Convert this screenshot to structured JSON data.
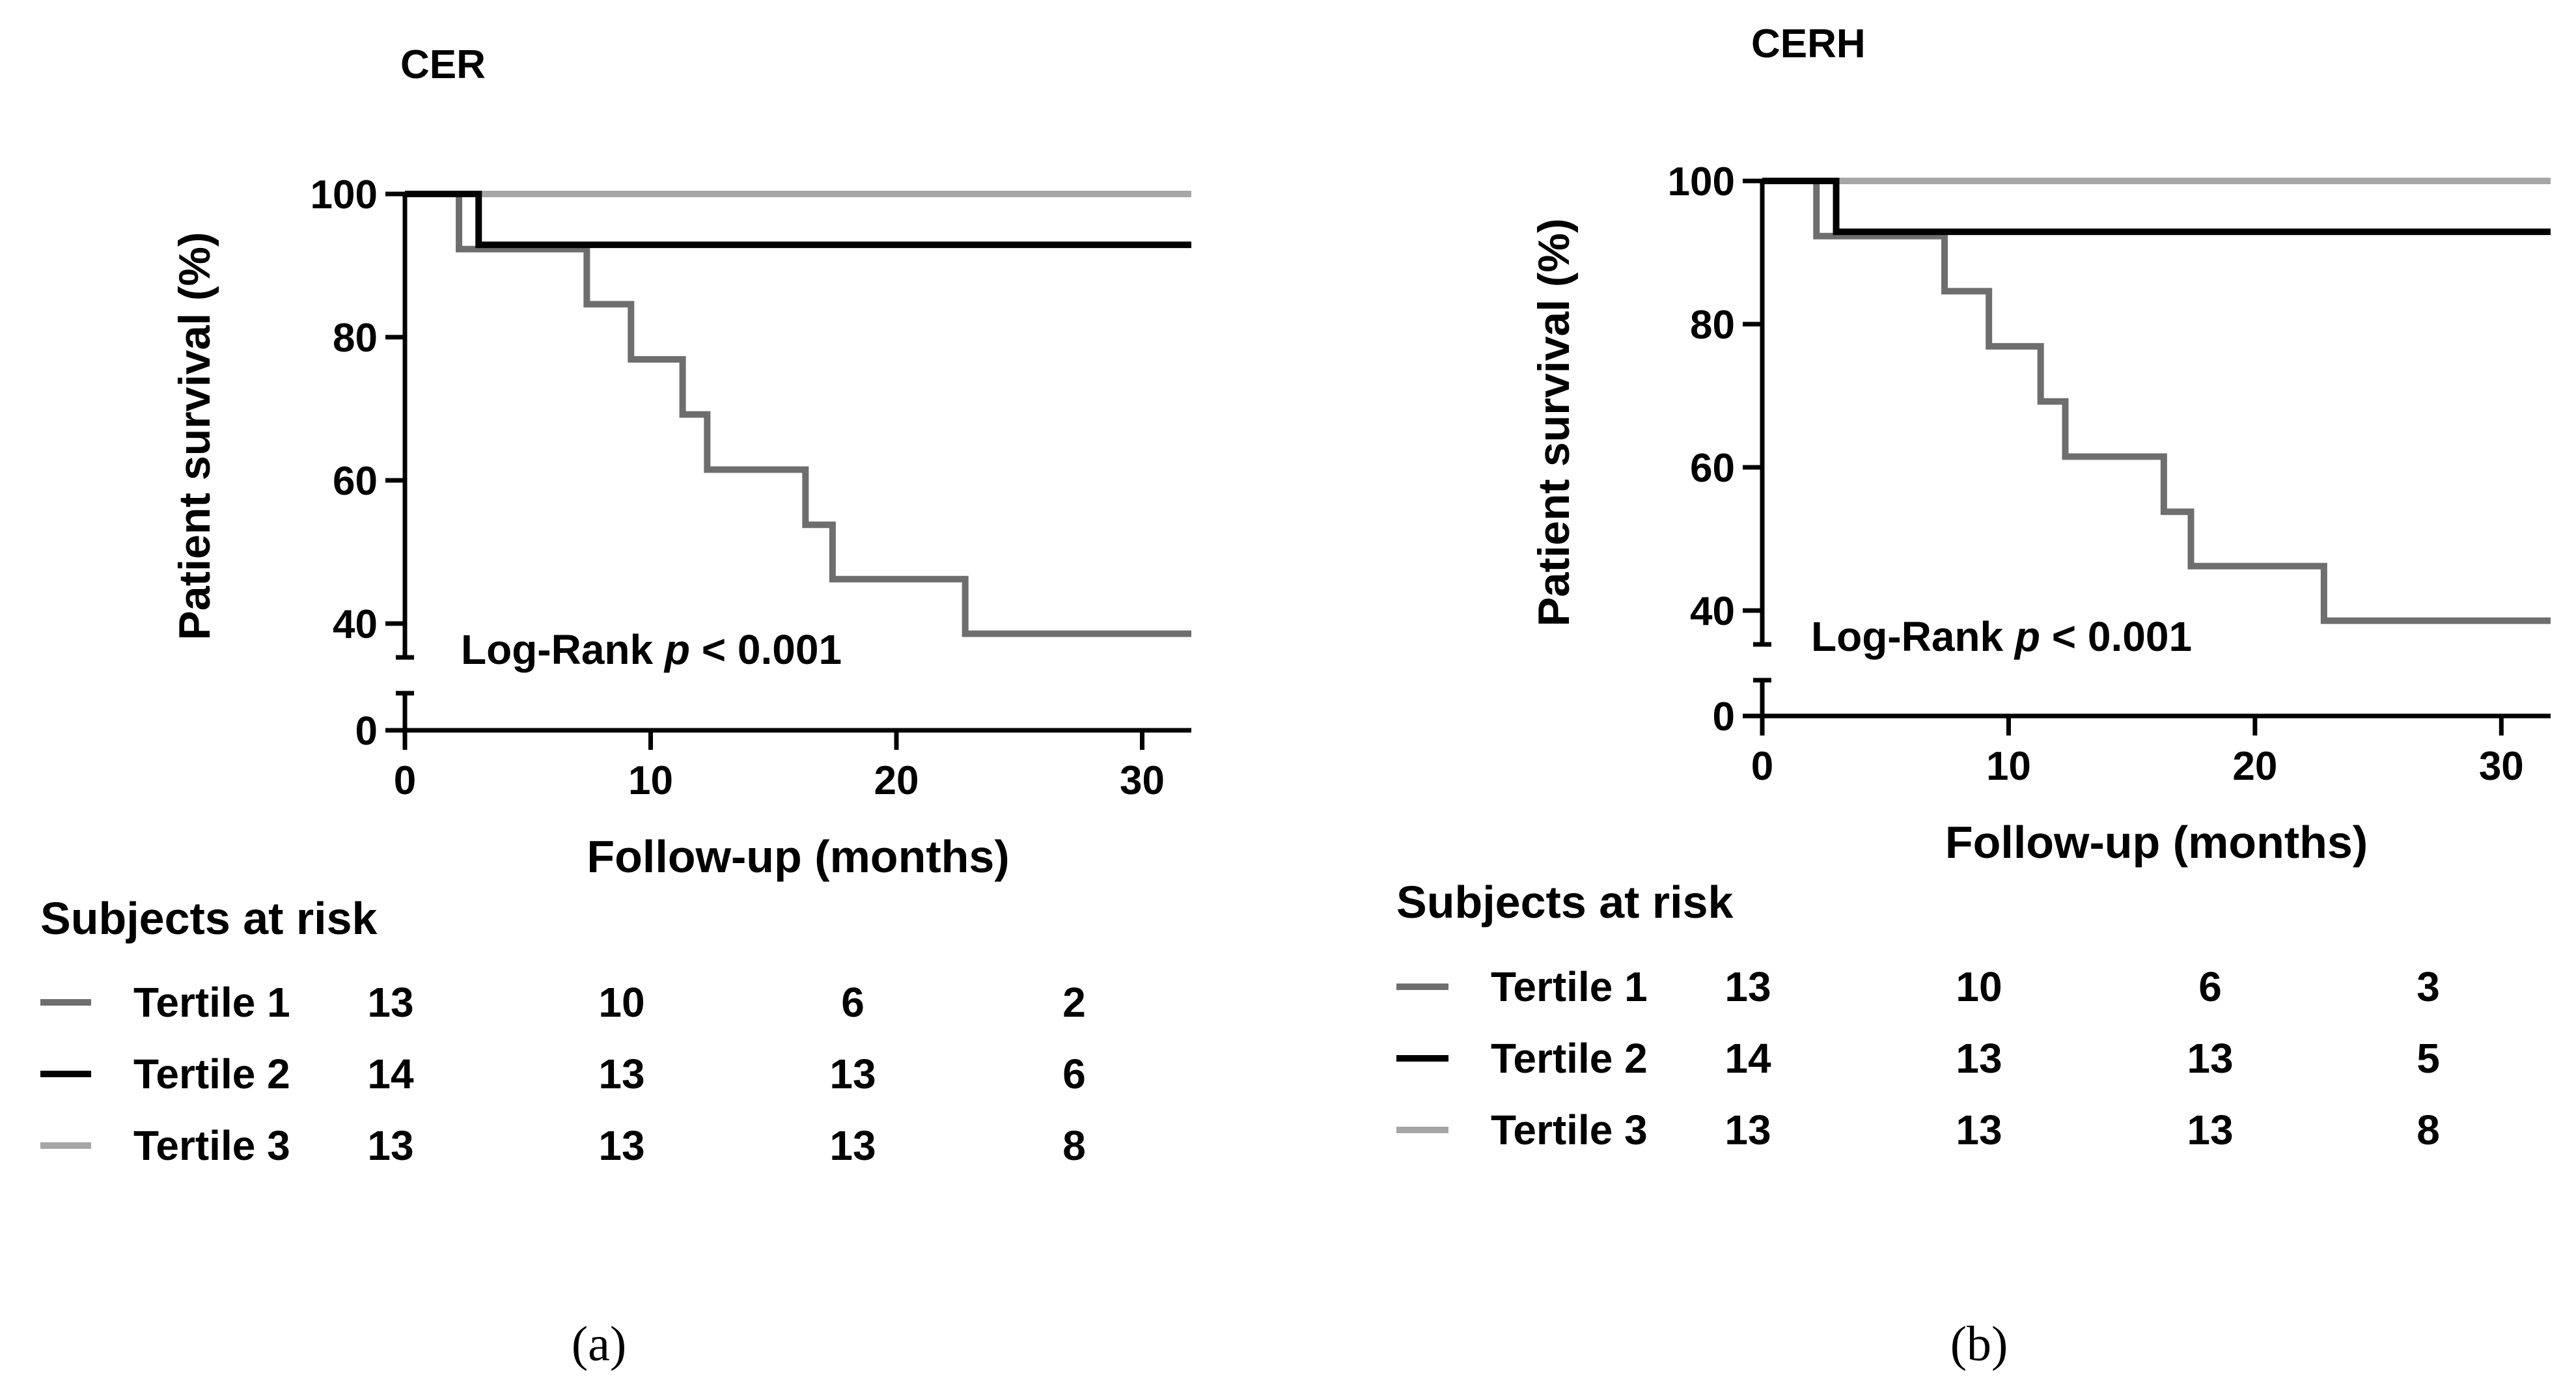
{
  "chart_data": [
    {
      "type": "line",
      "step": true,
      "title": "CER",
      "caption": "(a)",
      "xlabel": "Follow-up (months)",
      "ylabel": "Patient survival (%)",
      "xlim": [
        0,
        32
      ],
      "ylim": [
        0,
        100
      ],
      "axis_break": [
        5,
        35
      ],
      "xticks": [
        0,
        10,
        20,
        30
      ],
      "yticks": [
        0,
        40,
        60,
        80,
        100
      ],
      "annotation": {
        "prefix": "Log-Rank ",
        "italic": "p",
        "suffix": " < 0.001"
      },
      "series": [
        {
          "name": "Tertile 1",
          "color": "#6e6e6e",
          "x": [
            0,
            2.2,
            7.4,
            9.2,
            11.3,
            12.3,
            16.3,
            17.4,
            22.8,
            32
          ],
          "y": [
            100,
            92.3,
            84.6,
            76.9,
            69.2,
            61.5,
            53.8,
            46.2,
            38.5,
            38.5
          ]
        },
        {
          "name": "Tertile 2",
          "color": "#000000",
          "x": [
            0,
            3.0,
            32
          ],
          "y": [
            100,
            92.9,
            92.9
          ]
        },
        {
          "name": "Tertile 3",
          "color": "#a6a6a6",
          "x": [
            0,
            32
          ],
          "y": [
            100,
            100
          ]
        }
      ],
      "risk_table": {
        "title": "Subjects at risk",
        "rows": [
          {
            "label": "Tertile 1",
            "values": [
              "13",
              "10",
              "6",
              "2"
            ]
          },
          {
            "label": "Tertile 2",
            "values": [
              "14",
              "13",
              "13",
              "6"
            ]
          },
          {
            "label": "Tertile 3",
            "values": [
              "13",
              "13",
              "13",
              "8"
            ]
          }
        ]
      }
    },
    {
      "type": "line",
      "step": true,
      "title": "CERH",
      "caption": "(b)",
      "xlabel": "Follow-up (months)",
      "ylabel": "Patient survival (%)",
      "xlim": [
        0,
        32
      ],
      "ylim": [
        0,
        100
      ],
      "axis_break": [
        5,
        35
      ],
      "xticks": [
        0,
        10,
        20,
        30
      ],
      "yticks": [
        0,
        40,
        60,
        80,
        100
      ],
      "annotation": {
        "prefix": "Log-Rank ",
        "italic": "p",
        "suffix": " < 0.001"
      },
      "series": [
        {
          "name": "Tertile 1",
          "color": "#6e6e6e",
          "x": [
            0,
            2.2,
            7.4,
            9.2,
            11.3,
            12.3,
            16.3,
            17.4,
            22.8,
            32
          ],
          "y": [
            100,
            92.3,
            84.6,
            76.9,
            69.2,
            61.5,
            53.8,
            46.2,
            38.5,
            38.5
          ]
        },
        {
          "name": "Tertile 2",
          "color": "#000000",
          "x": [
            0,
            3.0,
            32
          ],
          "y": [
            100,
            92.9,
            92.9
          ]
        },
        {
          "name": "Tertile 3",
          "color": "#a6a6a6",
          "x": [
            0,
            32
          ],
          "y": [
            100,
            100
          ]
        }
      ],
      "risk_table": {
        "title": "Subjects at risk",
        "rows": [
          {
            "label": "Tertile 1",
            "values": [
              "13",
              "10",
              "6",
              "3"
            ]
          },
          {
            "label": "Tertile 2",
            "values": [
              "14",
              "13",
              "13",
              "5"
            ]
          },
          {
            "label": "Tertile 3",
            "values": [
              "13",
              "13",
              "13",
              "8"
            ]
          }
        ]
      }
    }
  ]
}
